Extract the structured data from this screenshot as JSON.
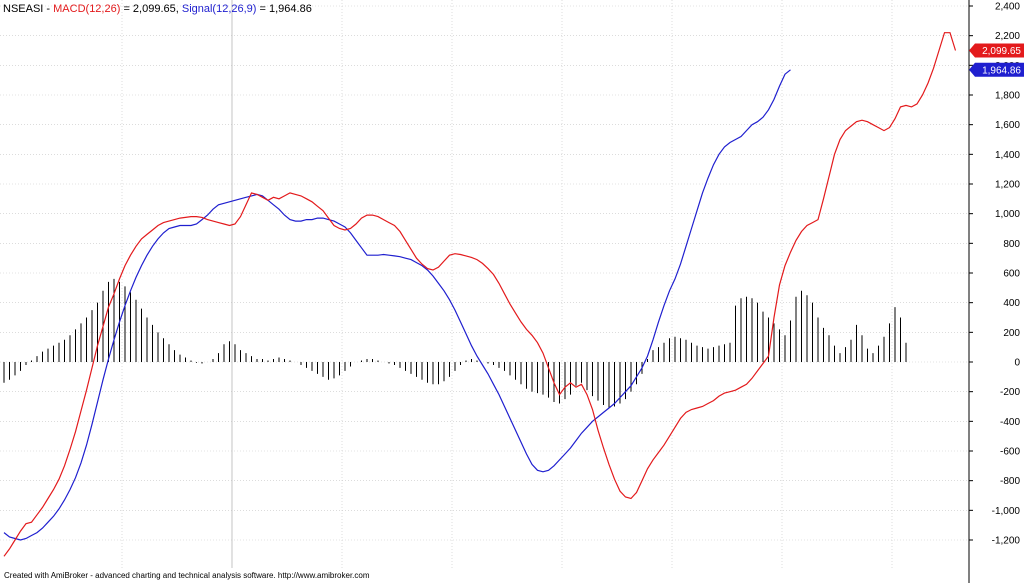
{
  "header": {
    "symbol": "NSEASI",
    "sep": " - ",
    "macd_label": "MACD(12,26)",
    "macd_eq": " = 2,099.65, ",
    "signal_label": "Signal(12,26,9)",
    "signal_eq": " = 1,964.86"
  },
  "footer": "Created with AmiBroker - advanced charting and technical analysis software. http://www.amibroker.com",
  "chart_data": {
    "type": "line",
    "title": "",
    "y_ticks": [
      2400,
      2200,
      2000,
      1800,
      1600,
      1400,
      1200,
      1000,
      800,
      600,
      400,
      200,
      0,
      -200,
      -400,
      -600,
      -800,
      -1000,
      -1200
    ],
    "y_tick_labels": [
      "2,400",
      "2,200",
      "2,000",
      "1,800",
      "1,600",
      "1,400",
      "1,200",
      "1,000",
      "800",
      "600",
      "400",
      "200",
      "0",
      "-200",
      "-400",
      "-600",
      "-800",
      "-1,000",
      "-1,200"
    ],
    "ylim": [
      -1400,
      2400
    ],
    "grid": true,
    "colors": {
      "macd": "#e31a1c",
      "signal": "#1f1fcf",
      "histogram": "#000000",
      "grid": "#c8c8c8"
    },
    "series": [
      {
        "name": "MACD(12,26)",
        "values": [
          -1310,
          -1260,
          -1200,
          -1140,
          -1090,
          -1080,
          -1030,
          -980,
          -920,
          -860,
          -790,
          -700,
          -590,
          -470,
          -330,
          -190,
          -40,
          110,
          240,
          370,
          460,
          560,
          650,
          720,
          780,
          830,
          860,
          890,
          920,
          940,
          950,
          960,
          970,
          975,
          980,
          980,
          975,
          960,
          950,
          940,
          930,
          920,
          930,
          980,
          1060,
          1140,
          1130,
          1110,
          1090,
          1110,
          1100,
          1120,
          1140,
          1130,
          1120,
          1100,
          1080,
          1050,
          1020,
          970,
          920,
          900,
          890,
          900,
          930,
          970,
          990,
          990,
          980,
          960,
          940,
          920,
          880,
          820,
          760,
          700,
          660,
          630,
          620,
          640,
          680,
          720,
          730,
          725,
          715,
          705,
          690,
          665,
          630,
          590,
          530,
          460,
          390,
          330,
          270,
          220,
          180,
          130,
          60,
          -40,
          -140,
          -220,
          -170,
          -140,
          -170,
          -150,
          -220,
          -320,
          -460,
          -580,
          -690,
          -790,
          -870,
          -910,
          -920,
          -880,
          -800,
          -720,
          -660,
          -610,
          -560,
          -500,
          -440,
          -380,
          -340,
          -320,
          -310,
          -300,
          -280,
          -260,
          -230,
          -210,
          -200,
          -190,
          -170,
          -150,
          -110,
          -60,
          -10,
          40,
          300,
          520,
          650,
          740,
          820,
          880,
          920,
          940,
          960,
          1100,
          1250,
          1400,
          1500,
          1560,
          1590,
          1620,
          1630,
          1620,
          1600,
          1580,
          1560,
          1580,
          1640,
          1720,
          1730,
          1720,
          1740,
          1800,
          1880,
          1980,
          2100,
          2220,
          2220,
          2100
        ],
        "x_start": 0,
        "x_step": 5
      },
      {
        "name": "Signal(12,26,9)",
        "values": [
          -1150,
          -1180,
          -1190,
          -1200,
          -1190,
          -1170,
          -1150,
          -1120,
          -1080,
          -1040,
          -990,
          -930,
          -860,
          -780,
          -680,
          -560,
          -420,
          -270,
          -120,
          20,
          150,
          270,
          380,
          480,
          570,
          650,
          720,
          780,
          830,
          870,
          900,
          910,
          920,
          920,
          920,
          930,
          960,
          990,
          1030,
          1060,
          1070,
          1080,
          1090,
          1100,
          1110,
          1120,
          1130,
          1120,
          1090,
          1060,
          1030,
          990,
          960,
          950,
          950,
          960,
          960,
          970,
          970,
          960,
          950,
          930,
          910,
          870,
          820,
          770,
          720,
          720,
          720,
          725,
          720,
          715,
          710,
          700,
          690,
          670,
          650,
          620,
          580,
          530,
          480,
          420,
          350,
          270,
          190,
          110,
          40,
          -20,
          -80,
          -150,
          -220,
          -300,
          -380,
          -460,
          -540,
          -620,
          -690,
          -730,
          -740,
          -730,
          -700,
          -660,
          -620,
          -580,
          -530,
          -480,
          -440,
          -400,
          -370,
          -340,
          -310,
          -280,
          -240,
          -200,
          -160,
          -100,
          -40,
          40,
          150,
          270,
          380,
          480,
          560,
          660,
          780,
          900,
          1020,
          1140,
          1240,
          1330,
          1400,
          1450,
          1480,
          1500,
          1520,
          1560,
          1600,
          1620,
          1650,
          1700,
          1770,
          1860,
          1940,
          1970
        ]
      }
    ],
    "histogram": {
      "name": "MACD Histogram",
      "values": [
        -140,
        -120,
        -90,
        -60,
        -20,
        10,
        40,
        70,
        90,
        110,
        130,
        150,
        180,
        220,
        260,
        300,
        350,
        400,
        480,
        540,
        560,
        540,
        510,
        470,
        420,
        360,
        300,
        250,
        200,
        160,
        120,
        80,
        50,
        30,
        10,
        -5,
        -10,
        0,
        20,
        60,
        120,
        140,
        120,
        80,
        60,
        40,
        20,
        20,
        10,
        20,
        30,
        20,
        10,
        0,
        -20,
        -40,
        -60,
        -80,
        -100,
        -120,
        -110,
        -90,
        -60,
        -30,
        0,
        10,
        20,
        20,
        10,
        0,
        -10,
        -20,
        -40,
        -60,
        -80,
        -100,
        -120,
        -140,
        -150,
        -150,
        -130,
        -100,
        -60,
        -20,
        10,
        20,
        10,
        0,
        -10,
        -20,
        -40,
        -60,
        -90,
        -120,
        -150,
        -180,
        -200,
        -210,
        -220,
        -240,
        -270,
        -280,
        -250,
        -220,
        -160,
        -140,
        -190,
        -230,
        -260,
        -290,
        -310,
        -300,
        -280,
        -250,
        -200,
        -150,
        -80,
        20,
        80,
        100,
        130,
        160,
        170,
        160,
        150,
        130,
        110,
        100,
        90,
        100,
        110,
        120,
        130,
        380,
        430,
        440,
        430,
        400,
        340,
        300,
        260,
        220,
        180,
        280,
        440,
        480,
        450,
        400,
        300,
        230,
        180,
        110,
        60,
        100,
        150,
        250,
        180,
        90,
        60,
        110,
        170,
        260,
        370,
        300,
        130
      ]
    }
  }
}
